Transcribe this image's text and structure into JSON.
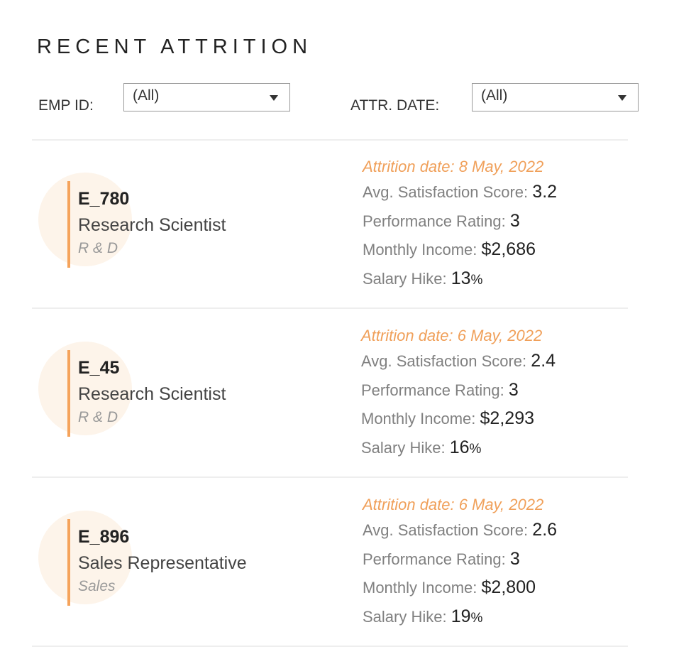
{
  "header": {
    "title": "RECENT ATTRITION"
  },
  "filters": [
    {
      "label": "EMP ID:",
      "value": "(All)"
    },
    {
      "label": "ATTR. DATE:",
      "value": "(All)"
    }
  ],
  "records": [
    {
      "id": "E_780",
      "role": "Research Scientist",
      "department": "R & D",
      "date": "Attrition date: 8 May, 2022",
      "fields": [
        {
          "label": "Avg. Satisfaction Score:",
          "value": "3.2"
        },
        {
          "label": "Performance Rating:",
          "value": "3"
        },
        {
          "label": "Monthly Income:",
          "value": "$2,686"
        },
        {
          "label": "Salary Hike:",
          "value": "13",
          "unit": "%"
        }
      ]
    },
    {
      "id": "E_45",
      "role": "Research Scientist",
      "department": "R & D",
      "date": "Attrition date: 6 May, 2022",
      "fields": [
        {
          "label": "Avg. Satisfaction Score:",
          "value": "2.4"
        },
        {
          "label": "Performance Rating:",
          "value": "3"
        },
        {
          "label": "Monthly Income:",
          "value": "$2,293"
        },
        {
          "label": "Salary Hike:",
          "value": "16",
          "unit": "%"
        }
      ]
    },
    {
      "id": "E_896",
      "role": "Sales Representative",
      "department": "Sales",
      "date": "Attrition date: 6 May, 2022",
      "fields": [
        {
          "label": "Avg. Satisfaction Score:",
          "value": "2.6"
        },
        {
          "label": "Performance Rating:",
          "value": "3"
        },
        {
          "label": "Monthly Income:",
          "value": "$2,800"
        },
        {
          "label": "Salary Hike:",
          "value": "19",
          "unit": "%"
        }
      ]
    }
  ]
}
